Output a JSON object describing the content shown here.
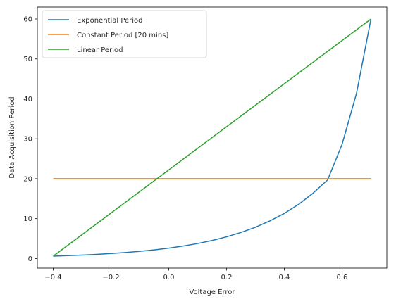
{
  "chart_data": {
    "type": "line",
    "xlabel": "Voltage Error",
    "ylabel": "Data Acquisition Period",
    "xlim": [
      -0.455,
      0.755
    ],
    "ylim": [
      -2.4,
      63.0
    ],
    "grid": false,
    "legend_position": "top-left",
    "xticks": [
      "−0.4",
      "−0.2",
      "0.0",
      "0.2",
      "0.4",
      "0.6"
    ],
    "xtick_values": [
      -0.4,
      -0.2,
      0.0,
      0.2,
      0.4,
      0.6
    ],
    "yticks": [
      "0",
      "10",
      "20",
      "30",
      "40",
      "50",
      "60"
    ],
    "ytick_values": [
      0,
      10,
      20,
      30,
      40,
      50,
      60
    ],
    "series": [
      {
        "name": "Exponential Period",
        "color": "#1f77b4",
        "x": [
          -0.4,
          -0.35,
          -0.3,
          -0.25,
          -0.2,
          -0.15,
          -0.1,
          -0.05,
          0.0,
          0.05,
          0.1,
          0.15,
          0.2,
          0.25,
          0.3,
          0.35,
          0.4,
          0.45,
          0.5,
          0.55,
          0.6,
          0.65,
          0.7
        ],
        "y": [
          0.6,
          0.72,
          0.86,
          1.04,
          1.25,
          1.5,
          1.8,
          2.17,
          2.6,
          3.13,
          3.76,
          4.52,
          5.43,
          6.53,
          7.84,
          9.43,
          11.3,
          13.6,
          16.4,
          19.7,
          28.6,
          41.4,
          60.0
        ]
      },
      {
        "name": "Constant Period [20 mins]",
        "color": "#ff7f0e",
        "x": [
          -0.4,
          0.7
        ],
        "y": [
          20,
          20
        ]
      },
      {
        "name": "Linear Period",
        "color": "#2ca02c",
        "x": [
          -0.4,
          0.7
        ],
        "y": [
          0.6,
          60.0
        ]
      }
    ]
  }
}
